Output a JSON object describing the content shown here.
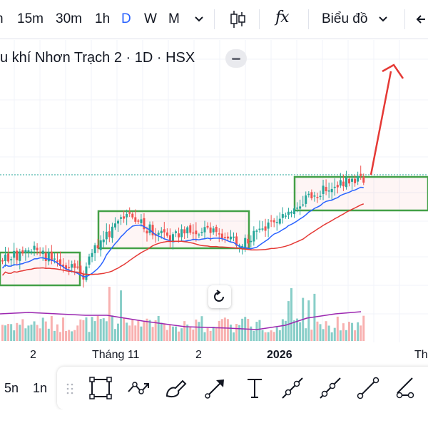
{
  "toolbar": {
    "timeframes": [
      "15m",
      "30m",
      "1h",
      "D",
      "W",
      "M"
    ],
    "active_timeframe": "D",
    "chart_type_menu_label": "Biểu đồ",
    "indicator_button_label": "fx"
  },
  "chart": {
    "title": "u khí Nhơn Trạch 2 · 1D · HSX",
    "x_labels": [
      "2",
      "Tháng 11",
      "2",
      "2026",
      "Th"
    ],
    "colors": {
      "up": "#26a69a",
      "down": "#ef5350",
      "ma_short": "#2962ff",
      "ma_long": "#e53935",
      "volume_ma": "#9c27b0",
      "box": "#43a047",
      "arrow": "#e53935"
    }
  },
  "drawbar": {
    "timeframes": [
      "5n",
      "1n"
    ],
    "tools": [
      "rectangle-tool",
      "path-tool",
      "brush-tool",
      "arrow-tool",
      "text-tool",
      "trend-line-tool",
      "ray-tool",
      "extended-line-tool",
      "parallel-channel-tool"
    ]
  }
}
